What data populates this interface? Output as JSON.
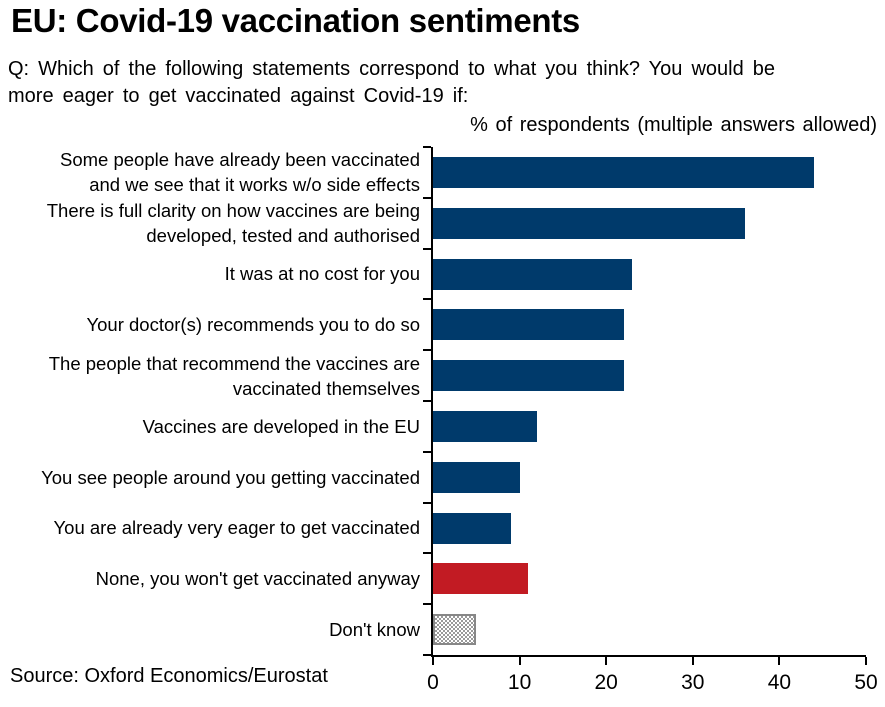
{
  "header": {
    "title": "EU: Covid-19 vaccination sentiments",
    "question": "Q: Which of the following statements correspond to what you think? You would be\nmore eager to get vaccinated against Covid-19 if:",
    "axis_note": "% of respondents (multiple answers allowed)"
  },
  "footer": {
    "source": "Source: Oxford Economics/Eurostat"
  },
  "colors": {
    "bar_primary": "#003a6b",
    "bar_negative": "#c21b23",
    "bar_dontknow_pattern": "#9a9a9a",
    "bar_dontknow_border": "#878787",
    "axis": "#000000"
  },
  "chart_data": {
    "type": "bar",
    "orientation": "horizontal",
    "title": "EU: Covid-19 vaccination sentiments",
    "xlabel": "% of respondents (multiple answers allowed)",
    "ylabel": "",
    "xlim": [
      0,
      50
    ],
    "xticks": [
      0,
      10,
      20,
      30,
      40,
      50
    ],
    "grid": false,
    "legend": false,
    "categories": [
      "Some people have already been vaccinated\nand we see that it works w/o side effects",
      "There is full clarity on how vaccines are being\ndeveloped, tested and authorised",
      "It was at no cost for you",
      "Your doctor(s) recommends you to do so",
      "The people that recommend the vaccines are\nvaccinated themselves",
      "Vaccines are developed in the EU",
      "You see people around you getting vaccinated",
      "You are already very eager to get vaccinated",
      "None, you won't get vaccinated anyway",
      "Don't know"
    ],
    "values": [
      44,
      36,
      23,
      22,
      22,
      12,
      10,
      9,
      11,
      5
    ],
    "bar_styles": [
      "primary",
      "primary",
      "primary",
      "primary",
      "primary",
      "primary",
      "primary",
      "primary",
      "negative",
      "dontknow"
    ]
  }
}
